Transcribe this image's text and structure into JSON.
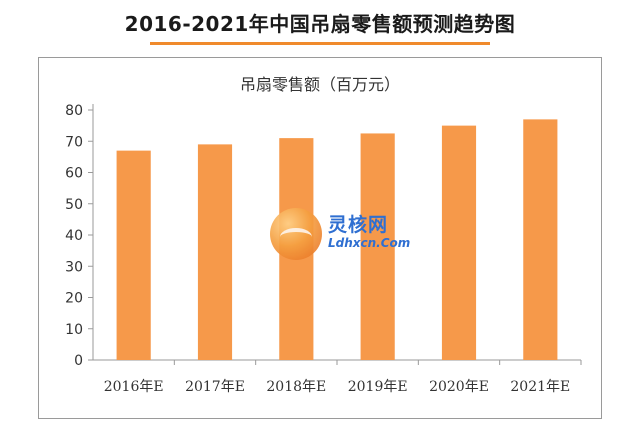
{
  "page_title": "2016-2021年中国吊扇零售额预测趋势图",
  "watermark": {
    "name": "灵核网",
    "url": "Ldhxcn.Com"
  },
  "colors": {
    "bar": "#f6994a",
    "title_rule": "#f08a2c",
    "axis": "#9a9a9a",
    "text": "#333333"
  },
  "chart_data": {
    "type": "bar",
    "title": "吊扇零售额（百万元）",
    "xlabel": "",
    "ylabel": "",
    "categories": [
      "2016年E",
      "2017年E",
      "2018年E",
      "2019年E",
      "2020年E",
      "2021年E"
    ],
    "values": [
      67,
      69,
      71,
      72.5,
      75,
      77
    ],
    "ylim": [
      0,
      80
    ],
    "yticks": [
      0,
      10,
      20,
      30,
      40,
      50,
      60,
      70,
      80
    ],
    "grid": false,
    "legend": "none"
  }
}
